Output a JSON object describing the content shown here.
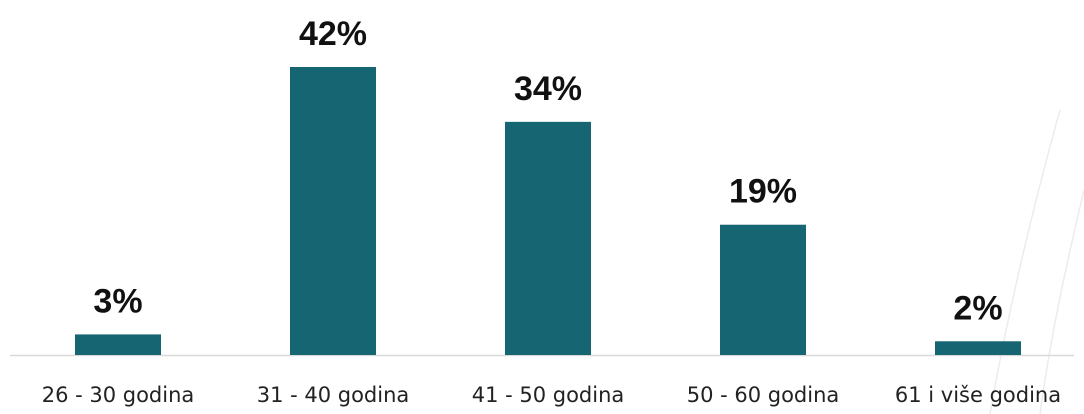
{
  "chart_data": {
    "type": "bar",
    "categories": [
      "26 - 30 godina",
      "31 - 40 godina",
      "41 - 50 godina",
      "50 - 60 godina",
      "61 i više godina"
    ],
    "values": [
      3,
      42,
      34,
      19,
      2
    ],
    "data_labels": [
      "3%",
      "42%",
      "34%",
      "19%",
      "2%"
    ],
    "unit": "%",
    "ylim": [
      0,
      42
    ],
    "grid": false,
    "legend": "none"
  },
  "colors": {
    "bar": "#156572",
    "baseline": "#d9d9d9",
    "decor_lines": "#ececec"
  }
}
